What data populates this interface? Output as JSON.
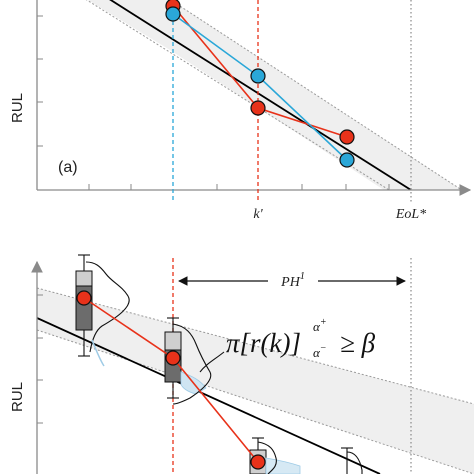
{
  "chart_data": [
    {
      "type": "line",
      "panel_label": "(a)",
      "ylabel": "RUL",
      "x_tick_labels": [
        "k'",
        "EoL*"
      ],
      "series": [
        {
          "color": "#e8321a",
          "points": [
            [
              173,
              6
            ],
            [
              258,
              108
            ],
            [
              347,
              137
            ]
          ]
        },
        {
          "color": "#2aa7d8",
          "points": [
            [
              173,
              14
            ],
            [
              258,
              76
            ],
            [
              347,
              160
            ]
          ]
        }
      ],
      "vertical_lines": [
        {
          "color": "#2aa7d8",
          "style": "dashed",
          "x": 173
        },
        {
          "color": "#e8321a",
          "style": "dashed",
          "x": 258
        },
        {
          "color": "#888888",
          "style": "dotted",
          "x": 411
        }
      ]
    },
    {
      "type": "line",
      "ylabel": "RUL",
      "annotation": "PH",
      "annotation_sup": "1",
      "formula": {
        "main": "π[r(k)]",
        "upper": "α",
        "upper_sup": "+",
        "lower": "α",
        "lower_sup": "−",
        "rhs": "≥ β"
      },
      "series": [
        {
          "color": "#e8321a",
          "points": [
            [
              84,
              298
            ],
            [
              173,
              358
            ],
            [
              258,
              462
            ]
          ]
        }
      ],
      "vertical_lines": [
        {
          "color": "#e8321a",
          "style": "dashed",
          "x": 173
        },
        {
          "color": "#888888",
          "style": "dotted",
          "x": 411
        }
      ]
    }
  ],
  "colors": {
    "band_fill": "#efefef",
    "band_border": "#9a9a9a",
    "true_line": "#000000",
    "red": "#e8321a",
    "blue": "#2aa7d8",
    "box_fill": "#cfcfcf",
    "box_dark": "#6c6c6c",
    "axis": "#8a8a8a"
  }
}
